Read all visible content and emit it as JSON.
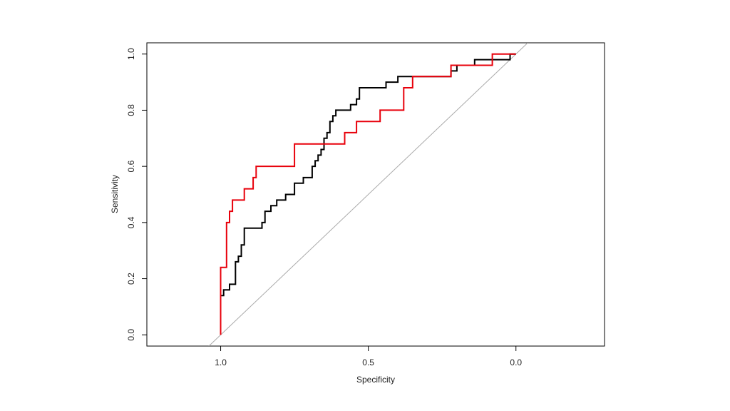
{
  "chart_data": {
    "type": "line",
    "title": "",
    "xlabel": "Specificity",
    "ylabel": "Sensitivity",
    "x_reversed": true,
    "xlim": [
      1.25,
      -0.3
    ],
    "ylim": [
      -0.04,
      1.04
    ],
    "x_ticks": [
      1.0,
      0.5,
      0.0
    ],
    "x_tick_labels": [
      "1.0",
      "0.5",
      "0.0"
    ],
    "y_ticks": [
      0.0,
      0.2,
      0.4,
      0.6,
      0.8,
      1.0
    ],
    "y_tick_labels": [
      "0.0",
      "0.2",
      "0.4",
      "0.6",
      "0.8",
      "1.0"
    ],
    "grid": false,
    "diagonal": {
      "from": [
        1.04,
        -0.04
      ],
      "to": [
        -0.04,
        1.04
      ],
      "color": "#aaaaaa"
    },
    "series": [
      {
        "color": "#000000",
        "step": true,
        "points": [
          [
            1.0,
            0.06
          ],
          [
            1.0,
            0.14
          ],
          [
            0.99,
            0.14
          ],
          [
            0.99,
            0.16
          ],
          [
            0.97,
            0.16
          ],
          [
            0.97,
            0.18
          ],
          [
            0.95,
            0.18
          ],
          [
            0.95,
            0.26
          ],
          [
            0.94,
            0.26
          ],
          [
            0.94,
            0.28
          ],
          [
            0.93,
            0.28
          ],
          [
            0.93,
            0.32
          ],
          [
            0.92,
            0.32
          ],
          [
            0.92,
            0.38
          ],
          [
            0.86,
            0.38
          ],
          [
            0.86,
            0.4
          ],
          [
            0.85,
            0.4
          ],
          [
            0.85,
            0.44
          ],
          [
            0.83,
            0.44
          ],
          [
            0.83,
            0.46
          ],
          [
            0.81,
            0.46
          ],
          [
            0.81,
            0.48
          ],
          [
            0.78,
            0.48
          ],
          [
            0.78,
            0.5
          ],
          [
            0.75,
            0.5
          ],
          [
            0.75,
            0.54
          ],
          [
            0.72,
            0.54
          ],
          [
            0.72,
            0.56
          ],
          [
            0.69,
            0.56
          ],
          [
            0.69,
            0.6
          ],
          [
            0.68,
            0.6
          ],
          [
            0.68,
            0.62
          ],
          [
            0.67,
            0.62
          ],
          [
            0.67,
            0.64
          ],
          [
            0.66,
            0.64
          ],
          [
            0.66,
            0.66
          ],
          [
            0.65,
            0.66
          ],
          [
            0.65,
            0.7
          ],
          [
            0.64,
            0.7
          ],
          [
            0.64,
            0.72
          ],
          [
            0.63,
            0.72
          ],
          [
            0.63,
            0.76
          ],
          [
            0.62,
            0.76
          ],
          [
            0.62,
            0.78
          ],
          [
            0.61,
            0.78
          ],
          [
            0.61,
            0.8
          ],
          [
            0.56,
            0.8
          ],
          [
            0.56,
            0.82
          ],
          [
            0.54,
            0.82
          ],
          [
            0.54,
            0.84
          ],
          [
            0.53,
            0.84
          ],
          [
            0.53,
            0.88
          ],
          [
            0.44,
            0.88
          ],
          [
            0.44,
            0.9
          ],
          [
            0.4,
            0.9
          ],
          [
            0.4,
            0.92
          ],
          [
            0.22,
            0.92
          ],
          [
            0.22,
            0.94
          ],
          [
            0.2,
            0.94
          ],
          [
            0.2,
            0.96
          ],
          [
            0.14,
            0.96
          ],
          [
            0.14,
            0.98
          ],
          [
            0.02,
            0.98
          ],
          [
            0.02,
            1.0
          ],
          [
            0.0,
            1.0
          ]
        ]
      },
      {
        "color": "#e8000b",
        "step": true,
        "points": [
          [
            1.0,
            0.0
          ],
          [
            1.0,
            0.24
          ],
          [
            0.98,
            0.24
          ],
          [
            0.98,
            0.4
          ],
          [
            0.97,
            0.4
          ],
          [
            0.97,
            0.44
          ],
          [
            0.96,
            0.44
          ],
          [
            0.96,
            0.48
          ],
          [
            0.92,
            0.48
          ],
          [
            0.92,
            0.52
          ],
          [
            0.89,
            0.52
          ],
          [
            0.89,
            0.56
          ],
          [
            0.88,
            0.56
          ],
          [
            0.88,
            0.6
          ],
          [
            0.75,
            0.6
          ],
          [
            0.75,
            0.68
          ],
          [
            0.58,
            0.68
          ],
          [
            0.58,
            0.72
          ],
          [
            0.54,
            0.72
          ],
          [
            0.54,
            0.76
          ],
          [
            0.46,
            0.76
          ],
          [
            0.46,
            0.8
          ],
          [
            0.38,
            0.8
          ],
          [
            0.38,
            0.88
          ],
          [
            0.35,
            0.88
          ],
          [
            0.35,
            0.92
          ],
          [
            0.22,
            0.92
          ],
          [
            0.22,
            0.96
          ],
          [
            0.08,
            0.96
          ],
          [
            0.08,
            1.0
          ],
          [
            0.0,
            1.0
          ]
        ]
      }
    ]
  }
}
